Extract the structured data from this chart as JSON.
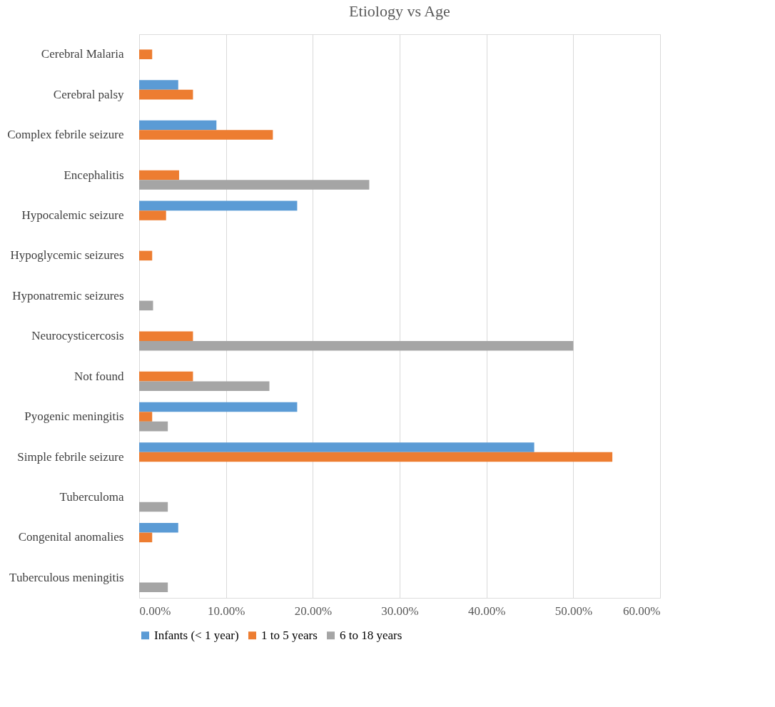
{
  "chart_data": {
    "type": "bar",
    "orientation": "horizontal",
    "title": "Etiology vs Age",
    "categories": [
      "Cerebral Malaria",
      "Cerebral palsy",
      "Complex  febrile seizure",
      "Encephalitis",
      "Hypocalemic seizure",
      "Hypoglycemic seizures",
      "Hyponatremic seizures",
      "Neurocysticercosis",
      "Not found",
      "Pyogenic  meningitis",
      "Simple febrile seizure",
      "Tuberculoma",
      "Congenital anomalies",
      "Tuberculous meningitis"
    ],
    "series": [
      {
        "name": "Infants (< 1 year)",
        "color": "#5b9bd5",
        "values": [
          null,
          4.5,
          8.9,
          null,
          18.2,
          null,
          null,
          null,
          null,
          18.2,
          45.5,
          null,
          4.5,
          null
        ]
      },
      {
        "name": "1 to 5 years",
        "color": "#ed7d31",
        "values": [
          1.5,
          6.2,
          15.4,
          4.6,
          3.1,
          1.5,
          null,
          6.2,
          6.2,
          1.5,
          54.5,
          null,
          1.5,
          null
        ]
      },
      {
        "name": "6 to 18 years",
        "color": "#a5a5a5",
        "values": [
          null,
          null,
          null,
          26.5,
          null,
          null,
          1.6,
          50.0,
          15.0,
          3.3,
          null,
          3.3,
          null,
          3.3
        ]
      }
    ],
    "xlim": [
      0,
      60
    ],
    "xticks": [
      {
        "value": 0,
        "label": "0.00%"
      },
      {
        "value": 10,
        "label": "10.00%"
      },
      {
        "value": 20,
        "label": "20.00%"
      },
      {
        "value": 30,
        "label": "30.00%"
      },
      {
        "value": 40,
        "label": "40.00%"
      },
      {
        "value": 50,
        "label": "50.00%"
      },
      {
        "value": 60,
        "label": "60.00%"
      }
    ],
    "grid": "x",
    "legend": "bottom"
  }
}
